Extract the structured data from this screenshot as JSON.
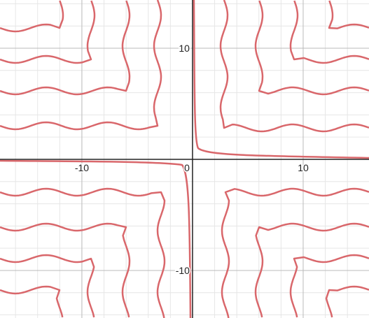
{
  "chart_data": {
    "type": "implicit",
    "xlim": [
      -17.4,
      15.95
    ],
    "ylim": [
      -14.28,
      14.34
    ],
    "xticks": [
      -10,
      0,
      10
    ],
    "yticks": [
      -10,
      10
    ],
    "minor_step": 2,
    "grid": true,
    "color": "#d9676b"
  }
}
